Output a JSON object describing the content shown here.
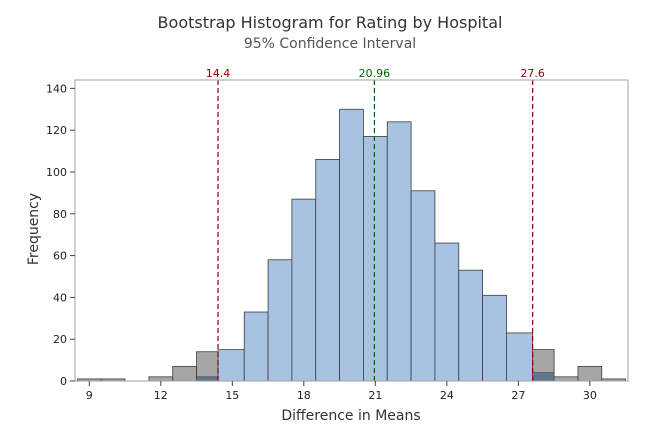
{
  "chart_data": {
    "type": "bar",
    "title": "Bootstrap Histogram for Rating by Hospital",
    "subtitle": "95% Confidence Interval",
    "xlabel": "Difference in Means",
    "ylabel": "Frequency",
    "xlim": [
      8.4,
      31.6
    ],
    "ylim": [
      0,
      144
    ],
    "xticks": [
      9,
      12,
      15,
      18,
      21,
      24,
      27,
      30
    ],
    "yticks": [
      0,
      20,
      40,
      60,
      80,
      100,
      120,
      140
    ],
    "bin_width": 1,
    "bars": [
      {
        "x0": 8.5,
        "x1": 9.5,
        "value": 1,
        "zone": "outside"
      },
      {
        "x0": 9.5,
        "x1": 10.5,
        "value": 1,
        "zone": "outside"
      },
      {
        "x0": 11.5,
        "x1": 12.5,
        "value": 2,
        "zone": "outside"
      },
      {
        "x0": 12.5,
        "x1": 13.5,
        "value": 7,
        "zone": "outside"
      },
      {
        "x0": 13.5,
        "x1": 14.4,
        "value": 14,
        "zone": "outside"
      },
      {
        "x0": 14.4,
        "x1": 15.5,
        "value": 15,
        "zone": "inside"
      },
      {
        "x0": 15.5,
        "x1": 16.5,
        "value": 33,
        "zone": "inside"
      },
      {
        "x0": 16.5,
        "x1": 17.5,
        "value": 58,
        "zone": "inside"
      },
      {
        "x0": 17.5,
        "x1": 18.5,
        "value": 87,
        "zone": "inside"
      },
      {
        "x0": 18.5,
        "x1": 19.5,
        "value": 106,
        "zone": "inside"
      },
      {
        "x0": 19.5,
        "x1": 20.5,
        "value": 130,
        "zone": "inside"
      },
      {
        "x0": 20.5,
        "x1": 21.5,
        "value": 117,
        "zone": "inside"
      },
      {
        "x0": 21.5,
        "x1": 22.5,
        "value": 124,
        "zone": "inside"
      },
      {
        "x0": 22.5,
        "x1": 23.5,
        "value": 91,
        "zone": "inside"
      },
      {
        "x0": 23.5,
        "x1": 24.5,
        "value": 66,
        "zone": "inside"
      },
      {
        "x0": 24.5,
        "x1": 25.5,
        "value": 53,
        "zone": "inside"
      },
      {
        "x0": 25.5,
        "x1": 26.5,
        "value": 41,
        "zone": "inside"
      },
      {
        "x0": 26.5,
        "x1": 27.6,
        "value": 23,
        "zone": "inside"
      },
      {
        "x0": 27.6,
        "x1": 28.5,
        "value": 15,
        "zone": "outside"
      },
      {
        "x0": 28.5,
        "x1": 29.5,
        "value": 2,
        "zone": "outside"
      },
      {
        "x0": 29.5,
        "x1": 30.5,
        "value": 7,
        "zone": "outside"
      },
      {
        "x0": 30.5,
        "x1": 31.5,
        "value": 1,
        "zone": "outside"
      }
    ],
    "overlap_bars": [
      {
        "x0": 13.5,
        "x1": 14.4,
        "value": 2
      },
      {
        "x0": 27.6,
        "x1": 28.5,
        "value": 4
      }
    ],
    "reference_lines": [
      {
        "x": 14.4,
        "label": "14.4",
        "color": "#8b0000"
      },
      {
        "x": 20.96,
        "label": "20.96",
        "color": "#006400"
      },
      {
        "x": 27.6,
        "label": "27.6",
        "color": "#8b0000"
      }
    ],
    "colors": {
      "inside": "#a7c3e1",
      "outside": "#a6a6a6",
      "overlap": "#5f7590",
      "bar_stroke": "#3c3c3c"
    },
    "grid": false
  }
}
